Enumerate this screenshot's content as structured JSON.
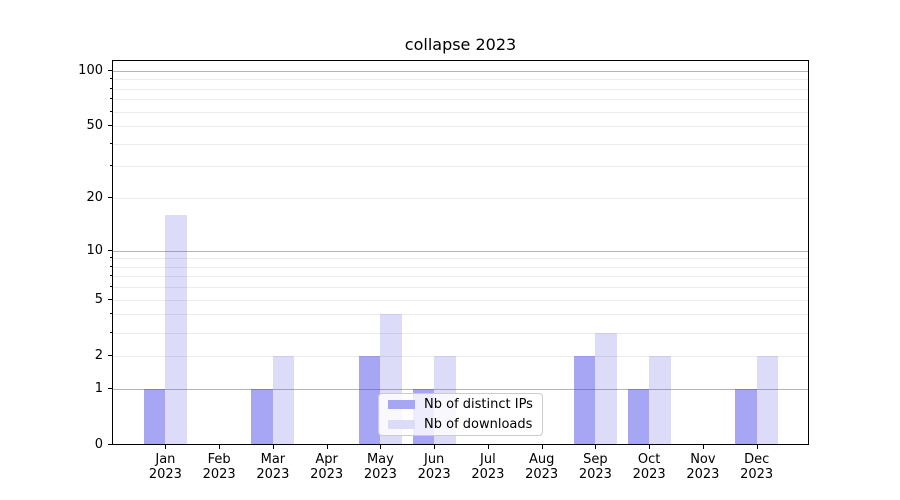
{
  "figure": {
    "title": "collapse 2023"
  },
  "colors": {
    "distinct_ips_fill": "rgba(57,57,231,0.45)",
    "downloads_fill": "rgba(80,80,220,0.2)",
    "distinct_ips_hex": "#a6a6f4",
    "downloads_hex": "#dcdcf8",
    "grid_major": "#b4b4b4",
    "grid_minor": "#ebebeb",
    "axis_frame": "#000000",
    "legend_border": "#cccccc"
  },
  "legend": {
    "items": [
      {
        "label": "Nb of distinct IPs",
        "key": "distinct_ips"
      },
      {
        "label": "Nb of downloads",
        "key": "downloads"
      }
    ]
  },
  "chart_data": {
    "type": "bar",
    "title": "collapse 2023",
    "categories": [
      {
        "month": "Jan",
        "year": "2023"
      },
      {
        "month": "Feb",
        "year": "2023"
      },
      {
        "month": "Mar",
        "year": "2023"
      },
      {
        "month": "Apr",
        "year": "2023"
      },
      {
        "month": "May",
        "year": "2023"
      },
      {
        "month": "Jun",
        "year": "2023"
      },
      {
        "month": "Jul",
        "year": "2023"
      },
      {
        "month": "Aug",
        "year": "2023"
      },
      {
        "month": "Sep",
        "year": "2023"
      },
      {
        "month": "Oct",
        "year": "2023"
      },
      {
        "month": "Nov",
        "year": "2023"
      },
      {
        "month": "Dec",
        "year": "2023"
      }
    ],
    "series": [
      {
        "name": "Nb of distinct IPs",
        "key": "distinct_ips",
        "values": [
          1,
          0,
          1,
          0,
          2,
          1,
          0,
          0,
          2,
          1,
          0,
          1
        ]
      },
      {
        "name": "Nb of downloads",
        "key": "downloads",
        "values": [
          16,
          0,
          2,
          0,
          4,
          2,
          0,
          0,
          3,
          2,
          0,
          2
        ]
      }
    ],
    "yscale": "log(1+x)",
    "yticks": [
      0,
      1,
      2,
      5,
      10,
      20,
      50,
      100
    ],
    "ytick_major_values": [
      1,
      10,
      100
    ],
    "ylim": [
      0,
      115
    ],
    "grid": "on",
    "legend_position": "lower center"
  }
}
